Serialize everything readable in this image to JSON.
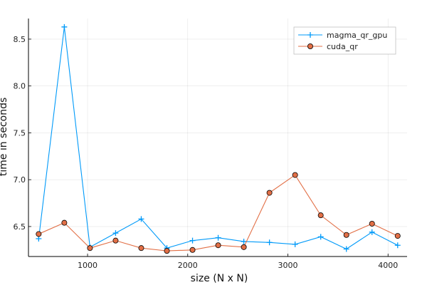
{
  "chart_data": {
    "type": "line",
    "title": "",
    "xlabel": "size (N x N)",
    "ylabel": "time in seconds",
    "xlim": [
      410,
      4190
    ],
    "ylim": [
      6.18,
      8.72
    ],
    "xticks": [
      1000,
      2000,
      3000,
      4000
    ],
    "yticks": [
      6.5,
      7.0,
      7.5,
      8.0,
      8.5
    ],
    "xtick_labels": [
      "1000",
      "2000",
      "3000",
      "4000"
    ],
    "ytick_labels": [
      "6.5",
      "7.0",
      "7.5",
      "8.0",
      "8.5"
    ],
    "grid": true,
    "legend_position": "top-right",
    "x": [
      512,
      768,
      1024,
      1280,
      1536,
      1792,
      2048,
      2304,
      2560,
      2816,
      3072,
      3328,
      3584,
      3840,
      4096
    ],
    "series": [
      {
        "name": "magma_qr_gpu",
        "color": "#009af9",
        "marker": "plus",
        "values": [
          6.37,
          8.63,
          6.28,
          6.43,
          6.58,
          6.27,
          6.35,
          6.38,
          6.34,
          6.33,
          6.31,
          6.39,
          6.26,
          6.44,
          6.3
        ]
      },
      {
        "name": "cuda_qr",
        "color": "#e26f46",
        "marker": "circle",
        "values": [
          6.42,
          6.54,
          6.27,
          6.35,
          6.27,
          6.24,
          6.25,
          6.3,
          6.28,
          6.86,
          7.05,
          6.62,
          6.41,
          6.53,
          6.4
        ]
      }
    ]
  }
}
